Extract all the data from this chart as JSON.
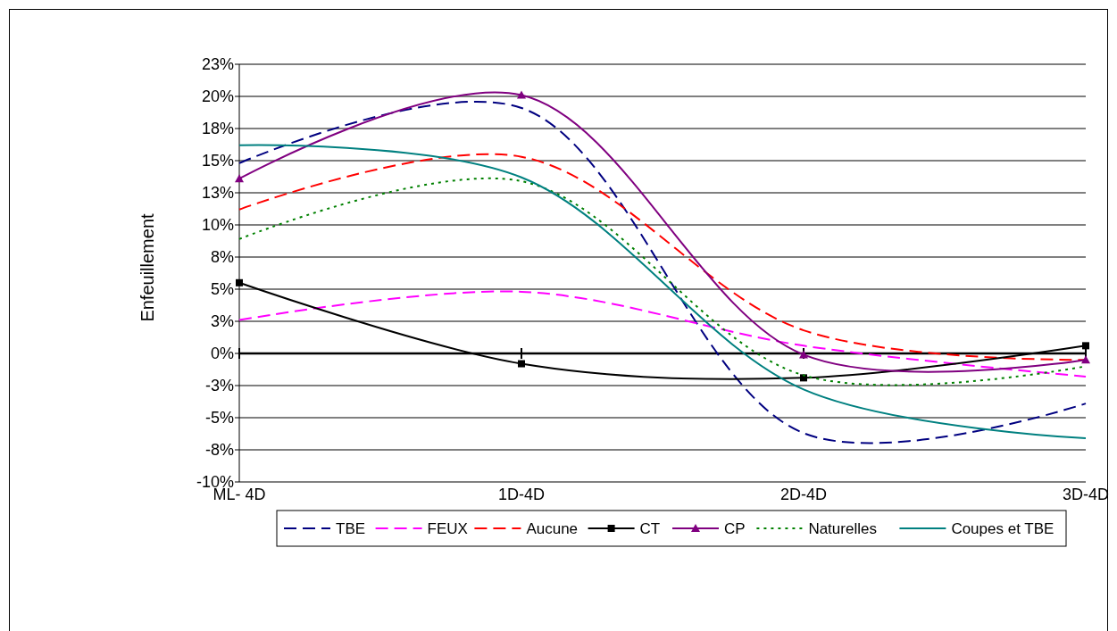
{
  "chart_data": {
    "type": "line",
    "ylabel": "Enfeuillement",
    "categories": [
      "ML- 4D",
      "1D-4D",
      "2D-4D",
      "3D-4D"
    ],
    "ylim": [
      -10,
      22.5
    ],
    "yticks": [
      {
        "value": -10,
        "label": "-10%"
      },
      {
        "value": -7.5,
        "label": "-8%"
      },
      {
        "value": -5,
        "label": "-5%"
      },
      {
        "value": -2.5,
        "label": "-3%"
      },
      {
        "value": 0,
        "label": "0%"
      },
      {
        "value": 2.5,
        "label": "3%"
      },
      {
        "value": 5,
        "label": "5%"
      },
      {
        "value": 7.5,
        "label": "8%"
      },
      {
        "value": 10,
        "label": "10%"
      },
      {
        "value": 12.5,
        "label": "13%"
      },
      {
        "value": 15,
        "label": "15%"
      },
      {
        "value": 17.5,
        "label": "18%"
      },
      {
        "value": 20,
        "label": "20%"
      },
      {
        "value": 22.5,
        "label": "23%"
      }
    ],
    "grid": "y",
    "legend": "bottom",
    "series": [
      {
        "name": "TBE",
        "color": "#000080",
        "values": [
          14.8,
          19.1,
          -6.2,
          -3.9
        ],
        "line_style": "dashed",
        "marker": "none"
      },
      {
        "name": "FEUX",
        "color": "#ff00ff",
        "values": [
          2.6,
          4.8,
          0.6,
          -1.8
        ],
        "line_style": "dashed",
        "marker": "none"
      },
      {
        "name": "Aucune",
        "color": "#ff0000",
        "values": [
          11.2,
          15.3,
          1.8,
          -0.5
        ],
        "line_style": "dashed",
        "marker": "none"
      },
      {
        "name": "CT",
        "color": "#000000",
        "values": [
          5.5,
          -0.8,
          -1.9,
          0.6
        ],
        "line_style": "solid",
        "marker": "square"
      },
      {
        "name": "CP",
        "color": "#800080",
        "values": [
          13.6,
          20.1,
          -0.1,
          -0.5
        ],
        "line_style": "solid",
        "marker": "triangle"
      },
      {
        "name": "Naturelles",
        "color": "#008000",
        "values": [
          8.9,
          13.4,
          -1.7,
          -1.0
        ],
        "line_style": "dotted",
        "marker": "none"
      },
      {
        "name": "Coupes et TBE",
        "color": "#008080",
        "values": [
          16.2,
          13.7,
          -2.8,
          -6.6
        ],
        "line_style": "solid",
        "marker": "none"
      }
    ]
  }
}
